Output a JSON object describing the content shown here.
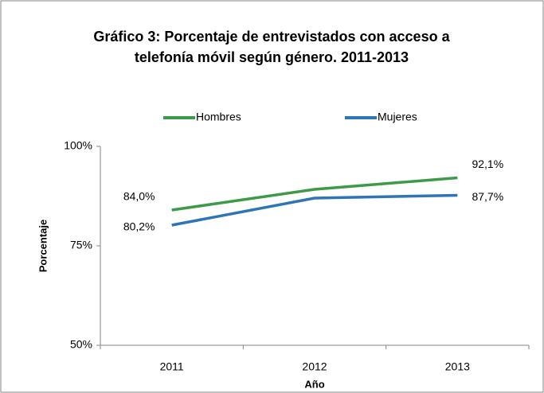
{
  "chart_data": {
    "type": "line",
    "title": [
      "Gráfico 3: Porcentaje de entrevistados con acceso a",
      "telefonía móvil según género. 2011-2013"
    ],
    "x_label": "Año",
    "y_label": "Porcentaje",
    "categories": [
      "2011",
      "2012",
      "2013"
    ],
    "series": [
      {
        "name": "Hombres",
        "color": "#3c9a48",
        "values": [
          84.0,
          89.2,
          92.1
        ],
        "value_labels": [
          "84,0%",
          null,
          "92,1%"
        ]
      },
      {
        "name": "Mujeres",
        "color": "#2e75b6",
        "values": [
          80.2,
          87.0,
          87.7
        ],
        "value_labels": [
          "80,2%",
          null,
          "87,7%"
        ]
      }
    ],
    "ylim": [
      50,
      100
    ],
    "yticks": [
      {
        "value": 50,
        "label": "50%"
      },
      {
        "value": 75,
        "label": "75%"
      },
      {
        "value": 100,
        "label": "100%"
      }
    ],
    "grid": false,
    "legend": "top"
  }
}
